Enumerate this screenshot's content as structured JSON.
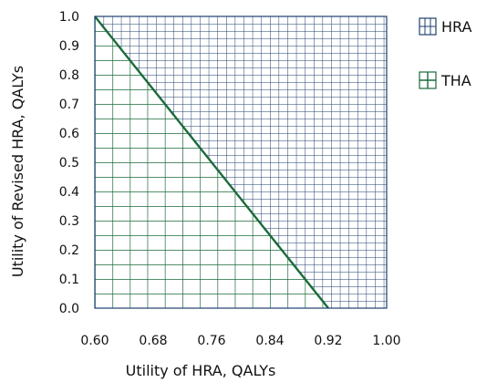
{
  "chart_data": {
    "type": "area",
    "title": "",
    "xlabel": "Utility of HRA, QALYs",
    "ylabel": "Utility of Revised HRA, QALYs",
    "xlim": [
      0.6,
      1.0
    ],
    "ylim": [
      0.0,
      1.0
    ],
    "x_ticks": [
      "0.60",
      "0.68",
      "0.76",
      "0.84",
      "0.92",
      "1.00"
    ],
    "y_ticks": [
      "0.0",
      "0.1",
      "0.2",
      "0.3",
      "0.4",
      "0.5",
      "0.6",
      "0.7",
      "0.8",
      "0.9",
      "1.0"
    ],
    "boundary": {
      "x": [
        0.6,
        0.92
      ],
      "y": [
        1.0,
        0.0
      ]
    },
    "regions": [
      {
        "name": "HRA",
        "color": "#1f3f6e",
        "side": "above boundary line"
      },
      {
        "name": "THA",
        "color": "#1b6b3a",
        "side": "below boundary line"
      }
    ],
    "grid": true,
    "legend_position": "right"
  }
}
